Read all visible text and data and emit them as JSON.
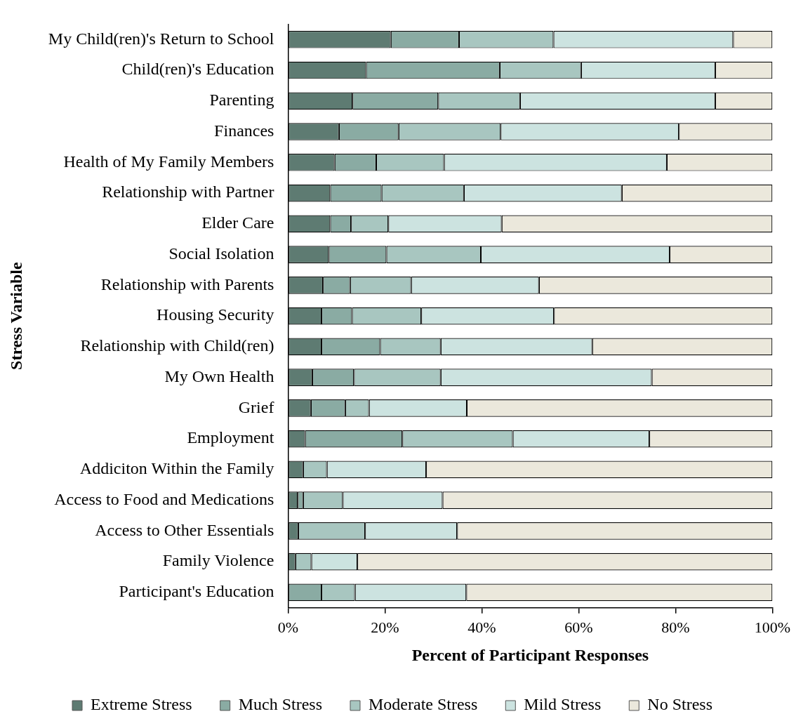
{
  "chart_data": {
    "type": "bar",
    "orientation": "horizontal",
    "stacked": true,
    "xlabel": "Percent of Participant Responses",
    "ylabel": "Stress Variable",
    "categories": [
      "My Child(ren)'s Return to School",
      "Child(ren)'s Education",
      "Parenting",
      "Finances",
      "Health of My Family Members",
      "Relationship with Partner",
      "Elder Care",
      "Social Isolation",
      "Relationship with Parents",
      "Housing Security",
      "Relationship with Child(ren)",
      "My Own Health",
      "Grief",
      "Employment",
      "Addiciton Within the Family",
      "Access to Food and Medications",
      "Access to Other Essentials",
      "Family Violence",
      "Participant's Education"
    ],
    "series": [
      {
        "name": "Extreme Stress",
        "color": "#5e7b72",
        "values": [
          21.2,
          16.1,
          13.3,
          10.5,
          9.6,
          8.7,
          8.7,
          8.4,
          7.2,
          6.9,
          6.9,
          5.0,
          4.7,
          3.5,
          3.1,
          2.0,
          2.1,
          1.5,
          0
        ]
      },
      {
        "name": "Much Stress",
        "color": "#8aaba3",
        "values": [
          14.1,
          27.6,
          17.7,
          12.3,
          8.6,
          10.6,
          4.3,
          11.9,
          5.6,
          6.3,
          12.1,
          8.6,
          7.1,
          20.1,
          0,
          1.1,
          0,
          0,
          6.9
        ]
      },
      {
        "name": "Moderate Stress",
        "color": "#a8c6c0",
        "values": [
          19.5,
          16.8,
          16.9,
          21.1,
          14.0,
          17.0,
          7.7,
          19.5,
          12.6,
          14.3,
          12.5,
          17.9,
          4.9,
          22.8,
          4.9,
          8.2,
          13.8,
          3.3,
          6.9
        ]
      },
      {
        "name": "Mild Stress",
        "color": "#cce3e0",
        "values": [
          37.1,
          27.7,
          40.3,
          36.8,
          46.0,
          32.6,
          23.4,
          39.0,
          26.4,
          27.4,
          31.3,
          43.6,
          20.2,
          28.2,
          20.5,
          20.6,
          19.0,
          9.5,
          23.0
        ]
      },
      {
        "name": "No Stress",
        "color": "#ebe8dc",
        "values": [
          8.1,
          11.8,
          11.8,
          19.3,
          21.8,
          31.1,
          55.9,
          21.2,
          48.2,
          45.1,
          37.2,
          24.9,
          63.1,
          25.4,
          71.5,
          68.1,
          65.1,
          85.7,
          63.2
        ]
      }
    ],
    "xlim": [
      0,
      100
    ],
    "xticks": [
      {
        "value": 0,
        "label": "0%"
      },
      {
        "value": 20,
        "label": "20%"
      },
      {
        "value": 40,
        "label": "40%"
      },
      {
        "value": 60,
        "label": "60%"
      },
      {
        "value": 80,
        "label": "80%"
      },
      {
        "value": 100,
        "label": "100%"
      }
    ],
    "grid": false,
    "legend": "bottom"
  }
}
